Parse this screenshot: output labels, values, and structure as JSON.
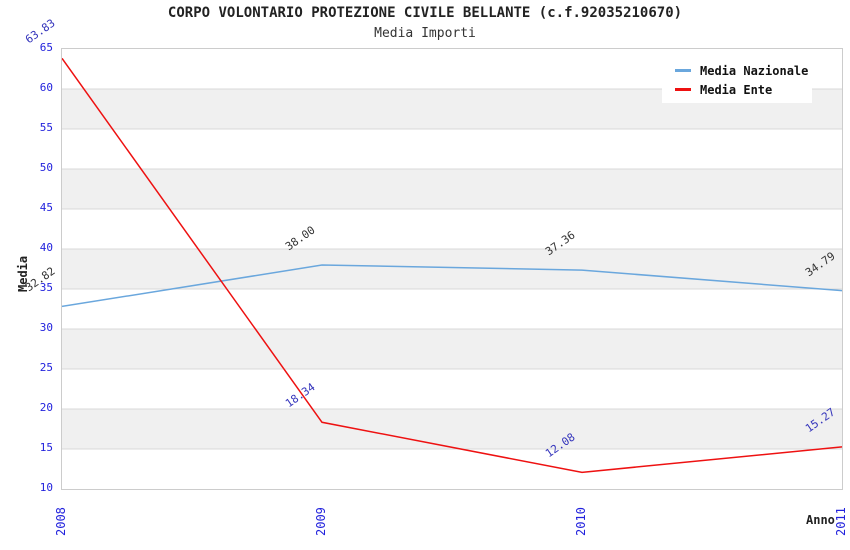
{
  "chart_data": {
    "type": "line",
    "title": "CORPO VOLONTARIO PROTEZIONE CIVILE BELLANTE (c.f.92035210670)",
    "subtitle": "Media Importi",
    "xlabel": "Anno",
    "ylabel": "Media",
    "categories": [
      "2008",
      "2009",
      "2010",
      "2011"
    ],
    "series": [
      {
        "name": "Media Nazionale",
        "color": "#6aa7dd",
        "label_color": "#333333",
        "values": [
          32.82,
          38.0,
          37.36,
          34.79
        ],
        "labels": [
          "32.82",
          "38.00",
          "37.36",
          "34.79"
        ]
      },
      {
        "name": "Media Ente",
        "color": "#ee1111",
        "label_color": "#3333bb",
        "values": [
          63.83,
          18.34,
          12.08,
          15.27
        ],
        "labels": [
          "63.83",
          "18.34",
          "12.08",
          "15.27"
        ]
      }
    ],
    "ylim": [
      10,
      65
    ],
    "yticks": [
      10,
      15,
      20,
      25,
      30,
      35,
      40,
      45,
      50,
      55,
      60,
      65
    ],
    "tick_label_color": "#2222dd",
    "band_color": "#f0f0f0",
    "gridline_color": "#d8d8d8",
    "border_color": "#cccccc",
    "legend_position": "top-right",
    "grid": true
  }
}
